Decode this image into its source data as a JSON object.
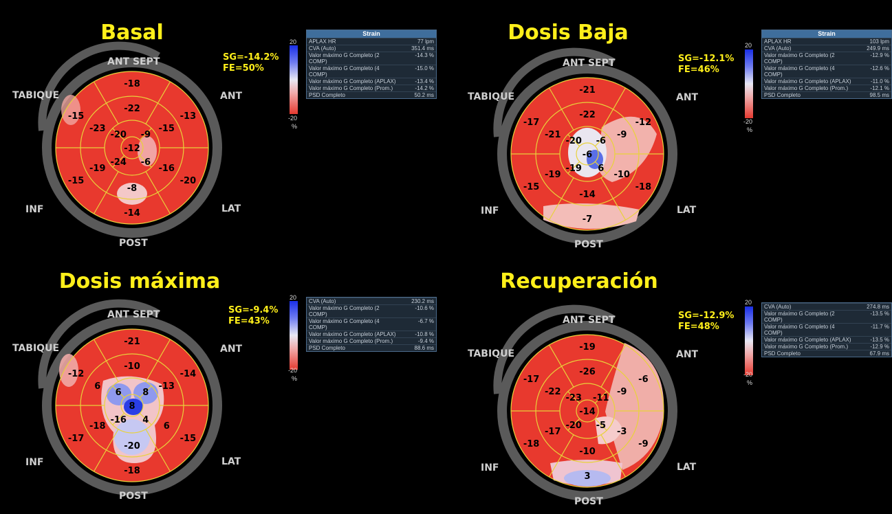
{
  "panels": [
    {
      "title": "Basal",
      "sg": "SG=-14.2%",
      "fe": "FE=50%",
      "dirs": {
        "ant_sept": "ANT  SEPT",
        "ant": "ANT",
        "lat": "LAT",
        "post": "POST",
        "inf": "INF",
        "tabique": "TABIQUE"
      },
      "scale": {
        "top": "20",
        "bottom": "-20",
        "unit": "%"
      },
      "table": {
        "header": "Strain",
        "rows": [
          {
            "label": "APLAX HR",
            "value": "77 lpm"
          },
          {
            "label": "CVA (Auto)",
            "value": "351.4 ms"
          },
          {
            "label": "Valor máximo G Completo (2 COMP)",
            "value": "-14.3 %"
          },
          {
            "label": "Valor máximo G Completo (4 COMP)",
            "value": "-15.0 %"
          },
          {
            "label": "Valor máximo G Completo (APLAX)",
            "value": "-13.4 %"
          },
          {
            "label": "Valor máximo G Completo (Prom.)",
            "value": "-14.2 %"
          },
          {
            "label": "PSD Completo",
            "value": "50.2 ms"
          }
        ]
      },
      "segments": {
        "basal": [
          "-18",
          "-13",
          "-20",
          "-14",
          "-15",
          "-15"
        ],
        "mid": [
          "-22",
          "-15",
          "-16",
          "-8",
          "-19",
          "-23"
        ],
        "apical": [
          "-9",
          "-6",
          "-24",
          "-20"
        ],
        "apex": "-12"
      }
    },
    {
      "title": "Dosis Baja",
      "sg": "SG=-12.1%",
      "fe": "FE=46%",
      "dirs": {
        "ant_sept": "ANT  SEPT",
        "ant": "ANT",
        "lat": "LAT",
        "post": "POST",
        "inf": "INF",
        "tabique": "TABIQUE"
      },
      "scale": {
        "top": "20",
        "bottom": "-20",
        "unit": "%"
      },
      "table": {
        "header": "Strain",
        "rows": [
          {
            "label": "APLAX HR",
            "value": "103 lpm"
          },
          {
            "label": "CVA (Auto)",
            "value": "249.9 ms"
          },
          {
            "label": "Valor máximo G Completo (2 COMP)",
            "value": "-12.9 %"
          },
          {
            "label": "Valor máximo G Completo (4 COMP)",
            "value": "-12.6 %"
          },
          {
            "label": "Valor máximo G Completo (APLAX)",
            "value": "-11.0 %"
          },
          {
            "label": "Valor máximo G Completo (Prom.)",
            "value": "-12.1 %"
          },
          {
            "label": "PSD Completo",
            "value": "98.5 ms"
          }
        ]
      },
      "segments": {
        "basal": [
          "-21",
          "-12",
          "-18",
          "-7",
          "-15",
          "-17"
        ],
        "mid": [
          "-22",
          "-9",
          "-10",
          "-14",
          "-19",
          "-21"
        ],
        "apical": [
          "-6",
          "6",
          "-19",
          "-20"
        ],
        "apex": "-6"
      }
    },
    {
      "title": "Dosis máxima",
      "sg": "SG=-9.4%",
      "fe": "FE=43%",
      "dirs": {
        "ant_sept": "ANT  SEPT",
        "ant": "ANT",
        "lat": "LAT",
        "post": "POST",
        "inf": "INF",
        "tabique": "TABIQUE"
      },
      "scale": {
        "top": "20",
        "bottom": "-20",
        "unit": "%"
      },
      "table": {
        "header": "",
        "rows": [
          {
            "label": "CVA (Auto)",
            "value": "230.2 ms"
          },
          {
            "label": "Valor máximo G Completo (2 COMP)",
            "value": "-10.6 %"
          },
          {
            "label": "Valor máximo G Completo (4 COMP)",
            "value": "-6.7 %"
          },
          {
            "label": "Valor máximo G Completo (APLAX)",
            "value": "-10.8 %"
          },
          {
            "label": "Valor máximo G Completo (Prom.)",
            "value": "-9.4 %"
          },
          {
            "label": "PSD Completo",
            "value": "88.6 ms"
          }
        ]
      },
      "segments": {
        "basal": [
          "-21",
          "-14",
          "-15",
          "-18",
          "-17",
          "-12"
        ],
        "mid": [
          "-10",
          "-13",
          "6",
          "-20",
          "-18",
          "6"
        ],
        "apical": [
          "8",
          "4",
          "-16",
          "6"
        ],
        "apex": "8"
      }
    },
    {
      "title": "Recuperación",
      "sg": "SG=-12.9%",
      "fe": "FE=48%",
      "dirs": {
        "ant_sept": "ANT  SEPT",
        "ant": "ANT",
        "lat": "LAT",
        "post": "POST",
        "inf": "INF",
        "tabique": "TABIQUE"
      },
      "scale": {
        "top": "20",
        "bottom": "-20",
        "unit": "%"
      },
      "table": {
        "header": "",
        "rows": [
          {
            "label": "CVA (Auto)",
            "value": "274.8 ms"
          },
          {
            "label": "Valor máximo G Completo (2 COMP)",
            "value": "-13.5 %"
          },
          {
            "label": "Valor máximo G Completo (4 COMP)",
            "value": "-11.7 %"
          },
          {
            "label": "Valor máximo G Completo (APLAX)",
            "value": "-13.5 %"
          },
          {
            "label": "Valor máximo G Completo (Prom.)",
            "value": "-12.9 %"
          },
          {
            "label": "PSD Completo",
            "value": "67.9 ms"
          }
        ]
      },
      "segments": {
        "basal": [
          "-19",
          "-6",
          "-9",
          "3",
          "-18",
          "-17"
        ],
        "mid": [
          "-26",
          "-9",
          "-3",
          "-10",
          "-17",
          "-22"
        ],
        "apical": [
          "-11",
          "-5",
          "-20",
          "-23"
        ],
        "apex": "-14"
      }
    }
  ]
}
